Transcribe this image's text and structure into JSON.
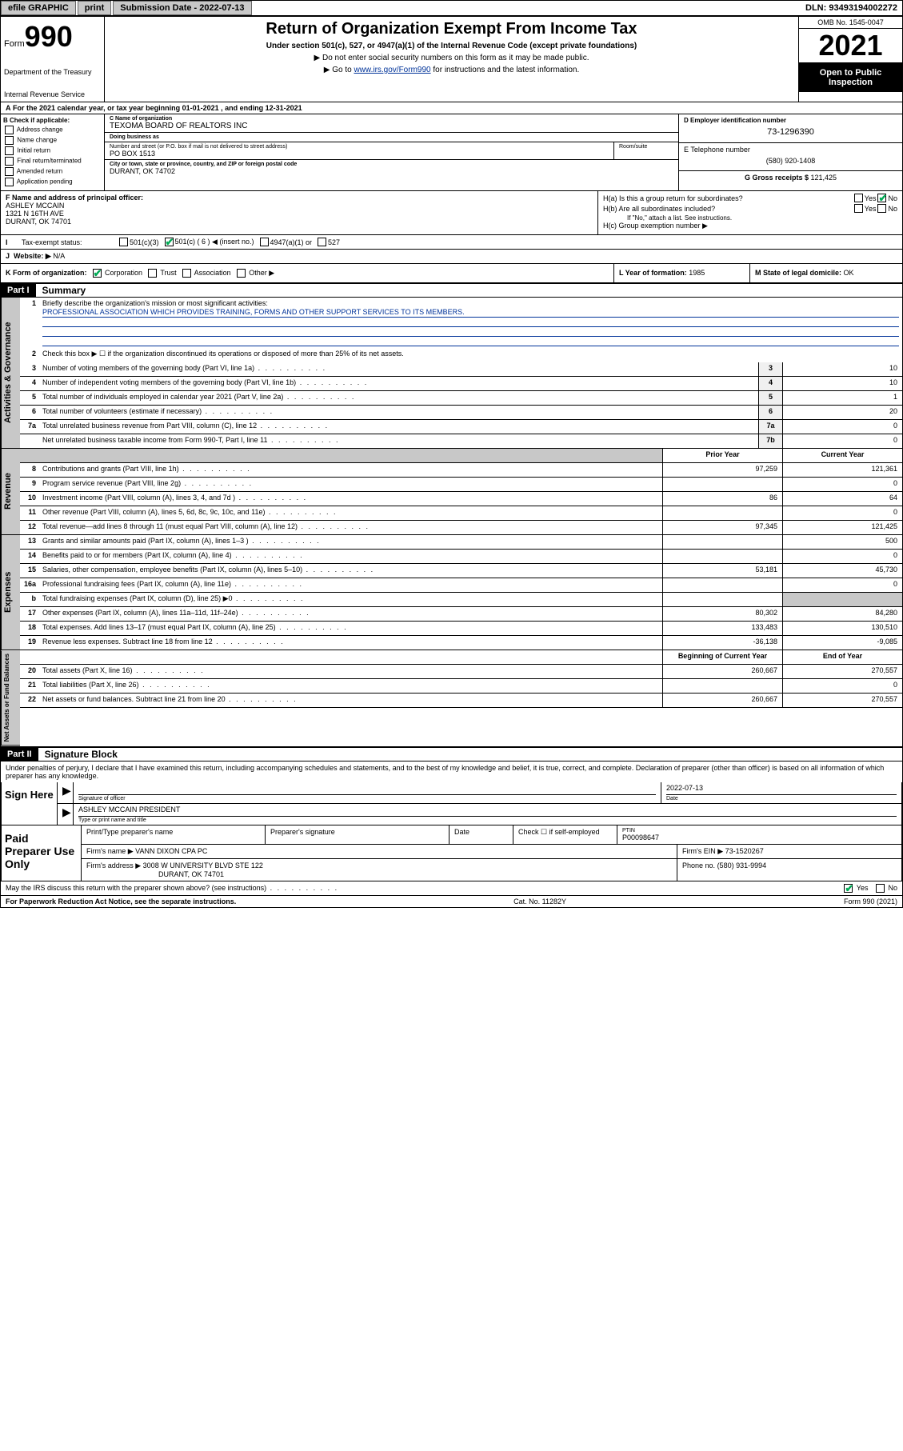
{
  "topbar": {
    "efile": "efile GRAPHIC",
    "print": "print",
    "subdate": "Submission Date - 2022-07-13",
    "dln": "DLN: 93493194002272"
  },
  "header": {
    "form_prefix": "Form",
    "form_num": "990",
    "dept": "Department of the Treasury",
    "irs": "Internal Revenue Service",
    "title": "Return of Organization Exempt From Income Tax",
    "sub": "Under section 501(c), 527, or 4947(a)(1) of the Internal Revenue Code (except private foundations)",
    "note1": "▶ Do not enter social security numbers on this form as it may be made public.",
    "note2_pre": "▶ Go to ",
    "note2_link": "www.irs.gov/Form990",
    "note2_post": " for instructions and the latest information.",
    "omb": "OMB No. 1545-0047",
    "year": "2021",
    "open": "Open to Public Inspection"
  },
  "rowA": "For the 2021 calendar year, or tax year beginning 01-01-2021  , and ending 12-31-2021",
  "colB": {
    "hdr": "B Check if applicable:",
    "items": [
      "Address change",
      "Name change",
      "Initial return",
      "Final return/terminated",
      "Amended return",
      "Application pending"
    ]
  },
  "boxC": {
    "name_lbl": "C Name of organization",
    "name": "TEXOMA BOARD OF REALTORS INC",
    "dba_lbl": "Doing business as",
    "dba": "",
    "addr_lbl": "Number and street (or P.O. box if mail is not delivered to street address)",
    "addr": "PO BOX 1513",
    "room_lbl": "Room/suite",
    "city_lbl": "City or town, state or province, country, and ZIP or foreign postal code",
    "city": "DURANT, OK  74702"
  },
  "boxD": {
    "lbl": "D Employer identification number",
    "val": "73-1296390"
  },
  "boxE": {
    "lbl": "E Telephone number",
    "val": "(580) 920-1408"
  },
  "boxG": {
    "lbl": "G Gross receipts $",
    "val": "121,425"
  },
  "colF": {
    "lbl": "F Name and address of principal officer:",
    "name": "ASHLEY MCCAIN",
    "addr1": "1321 N 16TH AVE",
    "addr2": "DURANT, OK  74701"
  },
  "colH": {
    "ha": "H(a)  Is this a group return for subordinates?",
    "hb": "H(b)  Are all subordinates included?",
    "hb_note": "If \"No,\" attach a list. See instructions.",
    "hc": "H(c)  Group exemption number ▶",
    "yes": "Yes",
    "no": "No"
  },
  "secI": {
    "lbl": "Tax-exempt status:",
    "o1": "501(c)(3)",
    "o2": "501(c) ( 6 ) ◀ (insert no.)",
    "o3": "4947(a)(1) or",
    "o4": "527"
  },
  "secJ": {
    "lbl": "Website: ▶",
    "val": "N/A"
  },
  "secK": {
    "lbl": "K Form of organization:",
    "o1": "Corporation",
    "o2": "Trust",
    "o3": "Association",
    "o4": "Other ▶"
  },
  "secL": {
    "lbl": "L Year of formation:",
    "val": "1985"
  },
  "secM": {
    "lbl": "M State of legal domicile:",
    "val": "OK"
  },
  "part1": {
    "hdr": "Part I",
    "title": "Summary",
    "l1": "Briefly describe the organization's mission or most significant activities:",
    "mission": "PROFESSIONAL ASSOCIATION WHICH PROVIDES TRAINING, FORMS AND OTHER SUPPORT SERVICES TO ITS MEMBERS.",
    "l2": "Check this box ▶ ☐  if the organization discontinued its operations or disposed of more than 25% of its net assets.",
    "rows_gov": [
      {
        "n": "3",
        "d": "Number of voting members of the governing body (Part VI, line 1a)",
        "box": "3",
        "v": "10"
      },
      {
        "n": "4",
        "d": "Number of independent voting members of the governing body (Part VI, line 1b)",
        "box": "4",
        "v": "10"
      },
      {
        "n": "5",
        "d": "Total number of individuals employed in calendar year 2021 (Part V, line 2a)",
        "box": "5",
        "v": "1"
      },
      {
        "n": "6",
        "d": "Total number of volunteers (estimate if necessary)",
        "box": "6",
        "v": "20"
      },
      {
        "n": "7a",
        "d": "Total unrelated business revenue from Part VIII, column (C), line 12",
        "box": "7a",
        "v": "0"
      },
      {
        "n": "",
        "d": "Net unrelated business taxable income from Form 990-T, Part I, line 11",
        "box": "7b",
        "v": "0"
      }
    ],
    "prior_hdr": "Prior Year",
    "curr_hdr": "Current Year",
    "rows_rev": [
      {
        "n": "8",
        "d": "Contributions and grants (Part VIII, line 1h)",
        "p": "97,259",
        "c": "121,361"
      },
      {
        "n": "9",
        "d": "Program service revenue (Part VIII, line 2g)",
        "p": "",
        "c": "0"
      },
      {
        "n": "10",
        "d": "Investment income (Part VIII, column (A), lines 3, 4, and 7d )",
        "p": "86",
        "c": "64"
      },
      {
        "n": "11",
        "d": "Other revenue (Part VIII, column (A), lines 5, 6d, 8c, 9c, 10c, and 11e)",
        "p": "",
        "c": "0"
      },
      {
        "n": "12",
        "d": "Total revenue—add lines 8 through 11 (must equal Part VIII, column (A), line 12)",
        "p": "97,345",
        "c": "121,425"
      }
    ],
    "rows_exp": [
      {
        "n": "13",
        "d": "Grants and similar amounts paid (Part IX, column (A), lines 1–3 )",
        "p": "",
        "c": "500"
      },
      {
        "n": "14",
        "d": "Benefits paid to or for members (Part IX, column (A), line 4)",
        "p": "",
        "c": "0"
      },
      {
        "n": "15",
        "d": "Salaries, other compensation, employee benefits (Part IX, column (A), lines 5–10)",
        "p": "53,181",
        "c": "45,730"
      },
      {
        "n": "16a",
        "d": "Professional fundraising fees (Part IX, column (A), line 11e)",
        "p": "",
        "c": "0"
      },
      {
        "n": "b",
        "d": "Total fundraising expenses (Part IX, column (D), line 25) ▶0",
        "p": "shade",
        "c": "shade"
      },
      {
        "n": "17",
        "d": "Other expenses (Part IX, column (A), lines 11a–11d, 11f–24e)",
        "p": "80,302",
        "c": "84,280"
      },
      {
        "n": "18",
        "d": "Total expenses. Add lines 13–17 (must equal Part IX, column (A), line 25)",
        "p": "133,483",
        "c": "130,510"
      },
      {
        "n": "19",
        "d": "Revenue less expenses. Subtract line 18 from line 12",
        "p": "-36,138",
        "c": "-9,085"
      }
    ],
    "beg_hdr": "Beginning of Current Year",
    "end_hdr": "End of Year",
    "rows_net": [
      {
        "n": "20",
        "d": "Total assets (Part X, line 16)",
        "p": "260,667",
        "c": "270,557"
      },
      {
        "n": "21",
        "d": "Total liabilities (Part X, line 26)",
        "p": "",
        "c": "0"
      },
      {
        "n": "22",
        "d": "Net assets or fund balances. Subtract line 21 from line 20",
        "p": "260,667",
        "c": "270,557"
      }
    ]
  },
  "sidelabels": {
    "gov": "Activities & Governance",
    "rev": "Revenue",
    "exp": "Expenses",
    "net": "Net Assets or Fund Balances"
  },
  "part2": {
    "hdr": "Part II",
    "title": "Signature Block",
    "decl": "Under penalties of perjury, I declare that I have examined this return, including accompanying schedules and statements, and to the best of my knowledge and belief, it is true, correct, and complete. Declaration of preparer (other than officer) is based on all information of which preparer has any knowledge."
  },
  "sign": {
    "here": "Sign Here",
    "sig_lbl": "Signature of officer",
    "date_lbl": "Date",
    "date": "2022-07-13",
    "name": "ASHLEY MCCAIN  PRESIDENT",
    "name_lbl": "Type or print name and title"
  },
  "prep": {
    "hdr": "Paid Preparer Use Only",
    "c1": "Print/Type preparer's name",
    "c2": "Preparer's signature",
    "c3": "Date",
    "c4_pre": "Check ☐ if self-employed",
    "c5_lbl": "PTIN",
    "c5": "P00098647",
    "firm_lbl": "Firm's name      ▶",
    "firm": "VANN DIXON CPA PC",
    "ein_lbl": "Firm's EIN ▶",
    "ein": "73-1520267",
    "addr_lbl": "Firm's address ▶",
    "addr1": "3008 W UNIVERSITY BLVD STE 122",
    "addr2": "DURANT, OK  74701",
    "phone_lbl": "Phone no.",
    "phone": "(580) 931-9994"
  },
  "bottom": {
    "q": "May the IRS discuss this return with the preparer shown above? (see instructions)",
    "yes": "Yes",
    "no": "No"
  },
  "footer": {
    "l": "For Paperwork Reduction Act Notice, see the separate instructions.",
    "m": "Cat. No. 11282Y",
    "r": "Form 990 (2021)"
  }
}
